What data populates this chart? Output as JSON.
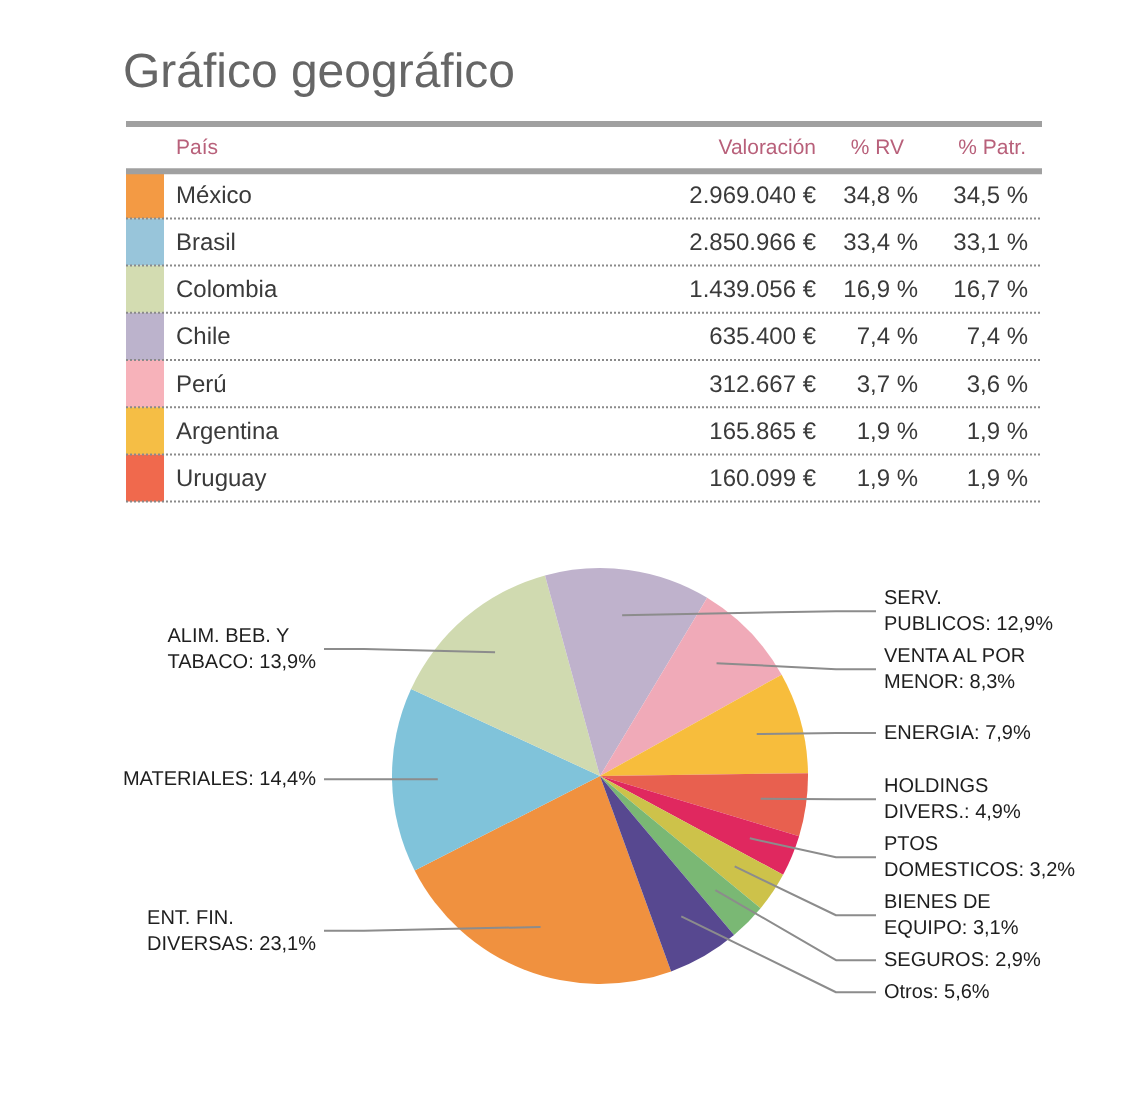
{
  "chart_data": [
    {
      "type": "other",
      "title": "Gráfico geográfico",
      "xlabel": "País",
      "categories": [
        "México",
        "Brasil",
        "Colombia",
        "Chile",
        "Perú",
        "Argentina",
        "Uruguay"
      ],
      "colors": [
        "#f39a44",
        "#98c5da",
        "#d3dcb1",
        "#bcb3cc",
        "#f7b2ba",
        "#f5be45",
        "#f0694d"
      ],
      "series": [
        {
          "name": "Valoración",
          "values": [
            2969040,
            2850966,
            1439056,
            635400,
            312667,
            165865,
            160099
          ],
          "value_labels": [
            "2.969.040 €",
            "2.850.966 €",
            "1.439.056 €",
            "635.400 €",
            "312.667 €",
            "165.865 €",
            "160.099 €"
          ]
        },
        {
          "name": "% RV",
          "values": [
            34.8,
            33.4,
            16.9,
            7.4,
            3.7,
            1.9,
            1.9
          ],
          "value_labels": [
            "34,8 %",
            "33,4 %",
            "16,9 %",
            "7,4 %",
            "3,7 %",
            "1,9 %",
            "1,9 %"
          ]
        },
        {
          "name": "% Patr.",
          "values": [
            34.5,
            33.1,
            16.7,
            7.4,
            3.6,
            1.9,
            1.9
          ],
          "value_labels": [
            "34,5 %",
            "33,1 %",
            "16,7 %",
            "7,4 %",
            "3,6 %",
            "1,9 %",
            "1,9 %"
          ]
        }
      ]
    },
    {
      "type": "pie",
      "categories": [
        "ENT. FIN. DIVERSAS",
        "MATERIALES",
        "ALIM. BEB. Y TABACO",
        "SERV. PUBLICOS",
        "VENTA AL POR MENOR",
        "ENERGIA",
        "HOLDINGS DIVERS.",
        "PTOS DOMESTICOS",
        "BIENES DE EQUIPO",
        "SEGUROS",
        "Otros"
      ],
      "values": [
        23.1,
        14.4,
        13.9,
        12.9,
        8.3,
        7.9,
        4.9,
        3.2,
        3.1,
        2.9,
        5.6
      ],
      "value_labels": [
        "23,1%",
        "14,4%",
        "13,9%",
        "12,9%",
        "8,3%",
        "7,9%",
        "4,9%",
        "3,2%",
        "3,1%",
        "2,9%",
        "5,6%"
      ],
      "colors": [
        "#f0913f",
        "#80c3da",
        "#d0dab0",
        "#bfb2cc",
        "#f0aab8",
        "#f7bd3c",
        "#e8604f",
        "#e0285f",
        "#cdc24a",
        "#7ab874",
        "#574890"
      ]
    }
  ]
}
